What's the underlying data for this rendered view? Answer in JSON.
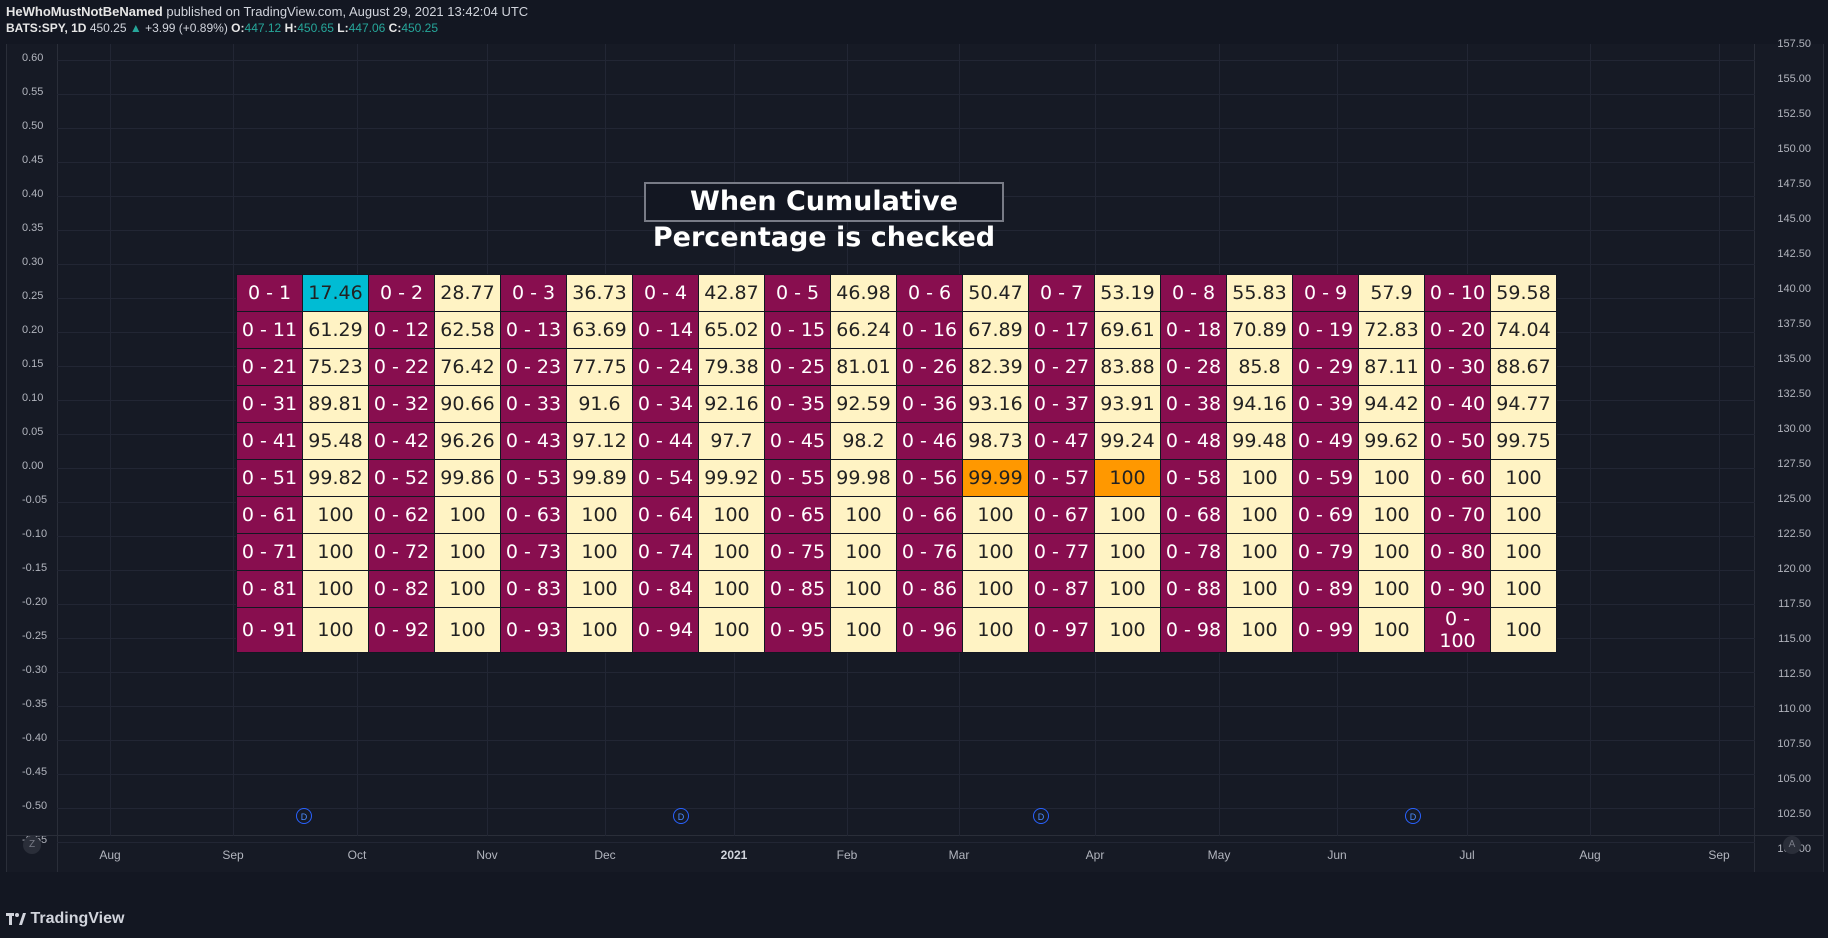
{
  "header": {
    "author": "HeWhoMustNotBeNamed",
    "published": "published on TradingView.com, August 29, 2021 13:42:04 UTC",
    "symbol": "BATS:SPY, 1D",
    "last": "450.25",
    "arrow": "▲",
    "change": "+3.99 (+0.89%)",
    "o_label": "O:",
    "o": "447.12",
    "h_label": "H:",
    "h": "450.65",
    "l_label": "L:",
    "l": "447.06",
    "c_label": "C:",
    "c": "450.25"
  },
  "title_label": "When Cumulative Percentage is checked",
  "left_scale": [
    "0.60",
    "0.55",
    "0.50",
    "0.45",
    "0.40",
    "0.35",
    "0.30",
    "0.25",
    "0.20",
    "0.15",
    "0.10",
    "0.05",
    "0.00",
    "-0.05",
    "-0.10",
    "-0.15",
    "-0.20",
    "-0.25",
    "-0.30",
    "-0.35",
    "-0.40",
    "-0.45",
    "-0.50",
    "-0.55"
  ],
  "right_scale": [
    "157.50",
    "155.00",
    "152.50",
    "150.00",
    "147.50",
    "145.00",
    "142.50",
    "140.00",
    "137.50",
    "135.00",
    "132.50",
    "130.00",
    "127.50",
    "125.00",
    "122.50",
    "120.00",
    "117.50",
    "115.00",
    "112.50",
    "110.00",
    "107.50",
    "105.00",
    "102.50",
    "100.00"
  ],
  "time_scale": [
    "Aug",
    "Sep",
    "Oct",
    "Nov",
    "Dec",
    "2021",
    "Feb",
    "Mar",
    "Apr",
    "May",
    "Jun",
    "Jul",
    "Aug",
    "Sep"
  ],
  "dividend_marker": "D",
  "z_button": "Z",
  "a_button": "A",
  "table": [
    [
      [
        "0 - 1",
        "17.46"
      ],
      [
        "0 - 2",
        "28.77"
      ],
      [
        "0 - 3",
        "36.73"
      ],
      [
        "0 - 4",
        "42.87"
      ],
      [
        "0 - 5",
        "46.98"
      ],
      [
        "0 - 6",
        "50.47"
      ],
      [
        "0 - 7",
        "53.19"
      ],
      [
        "0 - 8",
        "55.83"
      ],
      [
        "0 - 9",
        "57.9"
      ],
      [
        "0 - 10",
        "59.58"
      ]
    ],
    [
      [
        "0 - 11",
        "61.29"
      ],
      [
        "0 - 12",
        "62.58"
      ],
      [
        "0 - 13",
        "63.69"
      ],
      [
        "0 - 14",
        "65.02"
      ],
      [
        "0 - 15",
        "66.24"
      ],
      [
        "0 - 16",
        "67.89"
      ],
      [
        "0 - 17",
        "69.61"
      ],
      [
        "0 - 18",
        "70.89"
      ],
      [
        "0 - 19",
        "72.83"
      ],
      [
        "0 - 20",
        "74.04"
      ]
    ],
    [
      [
        "0 - 21",
        "75.23"
      ],
      [
        "0 - 22",
        "76.42"
      ],
      [
        "0 - 23",
        "77.75"
      ],
      [
        "0 - 24",
        "79.38"
      ],
      [
        "0 - 25",
        "81.01"
      ],
      [
        "0 - 26",
        "82.39"
      ],
      [
        "0 - 27",
        "83.88"
      ],
      [
        "0 - 28",
        "85.8"
      ],
      [
        "0 - 29",
        "87.11"
      ],
      [
        "0 - 30",
        "88.67"
      ]
    ],
    [
      [
        "0 - 31",
        "89.81"
      ],
      [
        "0 - 32",
        "90.66"
      ],
      [
        "0 - 33",
        "91.6"
      ],
      [
        "0 - 34",
        "92.16"
      ],
      [
        "0 - 35",
        "92.59"
      ],
      [
        "0 - 36",
        "93.16"
      ],
      [
        "0 - 37",
        "93.91"
      ],
      [
        "0 - 38",
        "94.16"
      ],
      [
        "0 - 39",
        "94.42"
      ],
      [
        "0 - 40",
        "94.77"
      ]
    ],
    [
      [
        "0 - 41",
        "95.48"
      ],
      [
        "0 - 42",
        "96.26"
      ],
      [
        "0 - 43",
        "97.12"
      ],
      [
        "0 - 44",
        "97.7"
      ],
      [
        "0 - 45",
        "98.2"
      ],
      [
        "0 - 46",
        "98.73"
      ],
      [
        "0 - 47",
        "99.24"
      ],
      [
        "0 - 48",
        "99.48"
      ],
      [
        "0 - 49",
        "99.62"
      ],
      [
        "0 - 50",
        "99.75"
      ]
    ],
    [
      [
        "0 - 51",
        "99.82"
      ],
      [
        "0 - 52",
        "99.86"
      ],
      [
        "0 - 53",
        "99.89"
      ],
      [
        "0 - 54",
        "99.92"
      ],
      [
        "0 - 55",
        "99.98"
      ],
      [
        "0 - 56",
        "99.99"
      ],
      [
        "0 - 57",
        "100"
      ],
      [
        "0 - 58",
        "100"
      ],
      [
        "0 - 59",
        "100"
      ],
      [
        "0 - 60",
        "100"
      ]
    ],
    [
      [
        "0 - 61",
        "100"
      ],
      [
        "0 - 62",
        "100"
      ],
      [
        "0 - 63",
        "100"
      ],
      [
        "0 - 64",
        "100"
      ],
      [
        "0 - 65",
        "100"
      ],
      [
        "0 - 66",
        "100"
      ],
      [
        "0 - 67",
        "100"
      ],
      [
        "0 - 68",
        "100"
      ],
      [
        "0 - 69",
        "100"
      ],
      [
        "0 - 70",
        "100"
      ]
    ],
    [
      [
        "0 - 71",
        "100"
      ],
      [
        "0 - 72",
        "100"
      ],
      [
        "0 - 73",
        "100"
      ],
      [
        "0 - 74",
        "100"
      ],
      [
        "0 - 75",
        "100"
      ],
      [
        "0 - 76",
        "100"
      ],
      [
        "0 - 77",
        "100"
      ],
      [
        "0 - 78",
        "100"
      ],
      [
        "0 - 79",
        "100"
      ],
      [
        "0 - 80",
        "100"
      ]
    ],
    [
      [
        "0 - 81",
        "100"
      ],
      [
        "0 - 82",
        "100"
      ],
      [
        "0 - 83",
        "100"
      ],
      [
        "0 - 84",
        "100"
      ],
      [
        "0 - 85",
        "100"
      ],
      [
        "0 - 86",
        "100"
      ],
      [
        "0 - 87",
        "100"
      ],
      [
        "0 - 88",
        "100"
      ],
      [
        "0 - 89",
        "100"
      ],
      [
        "0 - 90",
        "100"
      ]
    ],
    [
      [
        "0 - 91",
        "100"
      ],
      [
        "0 - 92",
        "100"
      ],
      [
        "0 - 93",
        "100"
      ],
      [
        "0 - 94",
        "100"
      ],
      [
        "0 - 95",
        "100"
      ],
      [
        "0 - 96",
        "100"
      ],
      [
        "0 - 97",
        "100"
      ],
      [
        "0 - 98",
        "100"
      ],
      [
        "0 - 99",
        "100"
      ],
      [
        "0 - 100",
        "100"
      ]
    ]
  ],
  "highlights": {
    "first_cell": {
      "row": 0,
      "col": 0,
      "color": "#00bcd4"
    },
    "mid_cells": [
      {
        "row": 5,
        "col": 5
      },
      {
        "row": 5,
        "col": 6
      }
    ],
    "mid_color": "#ff9800"
  },
  "colors": {
    "label_bg": "#880e4f",
    "value_bg": "#fff3c4",
    "background": "#131722"
  },
  "footer": {
    "logo": "TradingView"
  }
}
